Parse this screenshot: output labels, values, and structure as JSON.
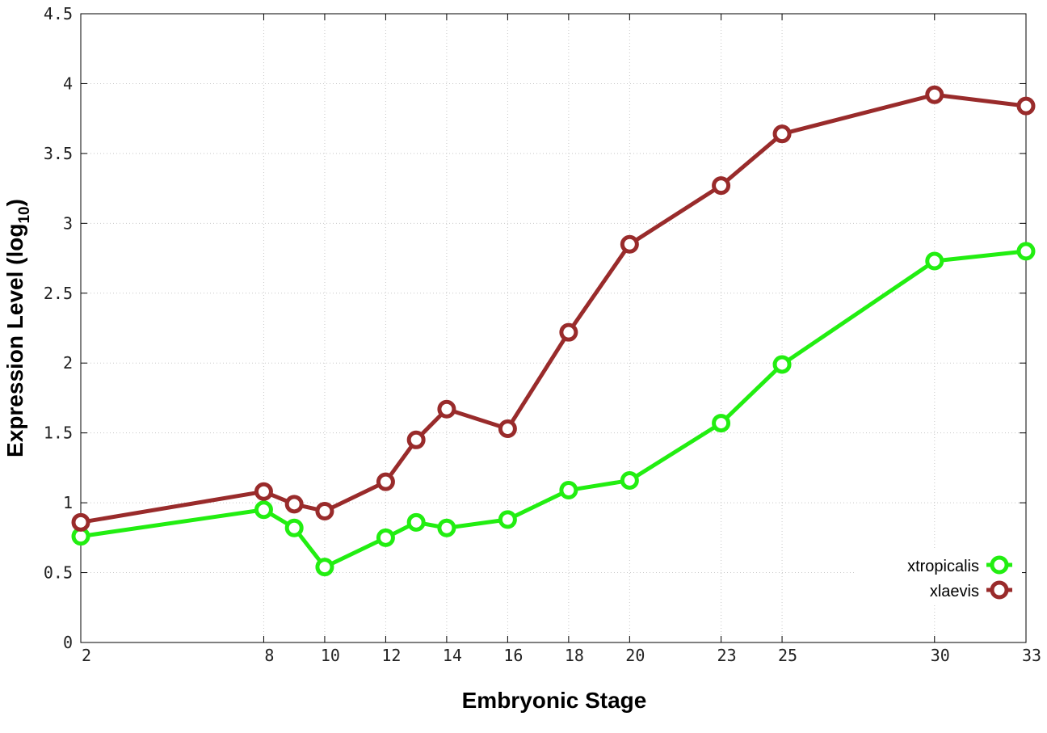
{
  "chart_data": {
    "type": "line",
    "xlabel": "Embryonic Stage",
    "ylabel": "Expression Level (log",
    "ylabel_subscript": "10",
    "ylabel_suffix": ")",
    "x": [
      2,
      8,
      9,
      10,
      12,
      13,
      14,
      16,
      18,
      20,
      23,
      25,
      30,
      33
    ],
    "x_tick_labels": [
      "2",
      "8",
      "10",
      "12",
      "14",
      "16",
      "18",
      "20",
      "23",
      "25",
      "30",
      "33"
    ],
    "y_tick_labels": [
      "0",
      "0.5",
      "1",
      "1.5",
      "2",
      "2.5",
      "3",
      "3.5",
      "4",
      "4.5"
    ],
    "ylim": [
      0,
      4.5
    ],
    "xlim": [
      2,
      33
    ],
    "grid": true,
    "legend_position": "bottom-right",
    "series": [
      {
        "name": "xtropicalis",
        "color": "#22ee11",
        "values": [
          0.76,
          0.95,
          0.82,
          0.54,
          0.75,
          0.86,
          0.82,
          0.88,
          1.09,
          1.16,
          1.57,
          1.99,
          2.73,
          2.8
        ]
      },
      {
        "name": "xlaevis",
        "color": "#992b2b",
        "values": [
          0.86,
          1.08,
          0.99,
          0.94,
          1.15,
          1.45,
          1.67,
          1.53,
          2.22,
          2.85,
          3.27,
          3.64,
          3.92,
          3.84
        ]
      }
    ]
  }
}
